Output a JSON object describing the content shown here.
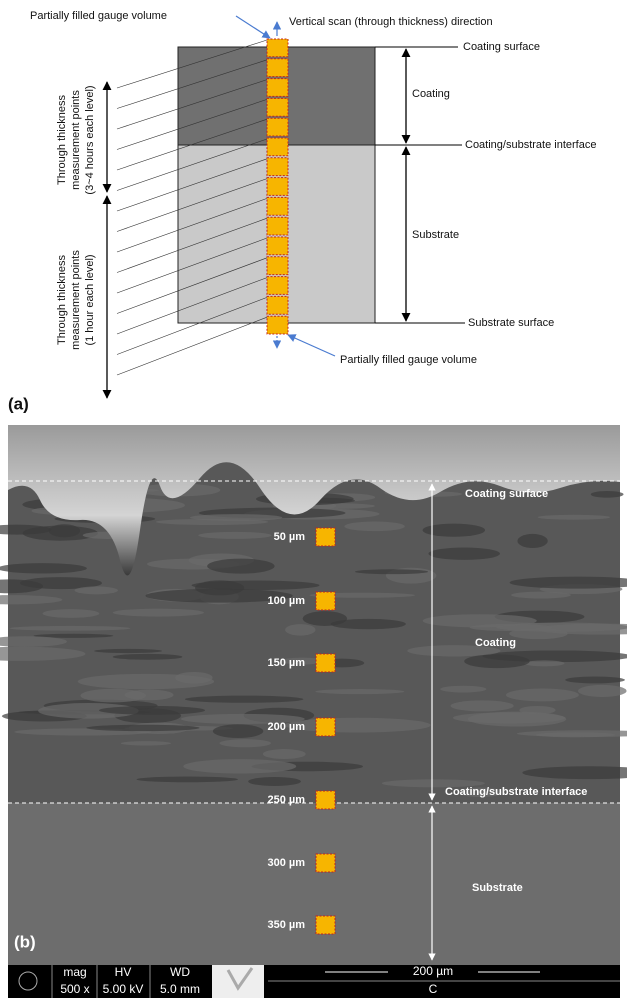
{
  "panel_a": {
    "label": "(a)",
    "top_gauge_label": "Partially filled gauge volume",
    "scan_label": "Vertical scan (through thickness) direction",
    "coating_surface": "Coating surface",
    "coating": "Coating",
    "interface": "Coating/substrate interface",
    "substrate": "Substrate",
    "substrate_surface": "Substrate surface",
    "bottom_gauge_label": "Partially filled gauge volume",
    "left_label_1": [
      "Through thickness",
      "measurement points",
      "(3~4 hours each level)"
    ],
    "left_label_2": [
      "Through thickness",
      "measurement points",
      "(1 hour each level)"
    ]
  },
  "panel_b": {
    "label": "(b)",
    "coating_surface": "Coating surface",
    "coating": "Coating",
    "interface": "Coating/substrate interface",
    "substrate": "Substrate",
    "depths": [
      "50 µm",
      "100 µm",
      "150 µm",
      "200 µm",
      "250 µm",
      "300 µm",
      "350 µm"
    ],
    "sem_bar": {
      "mag_label": "mag",
      "mag": "500 x",
      "hv_label": "HV",
      "hv": "5.00 kV",
      "wd_label": "WD",
      "wd": "5.0 mm",
      "scale": "200 µm",
      "detector": "C"
    }
  }
}
